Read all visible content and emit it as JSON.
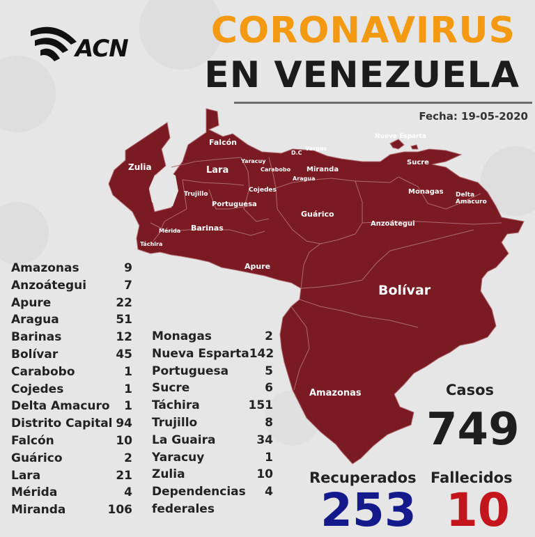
{
  "brand": {
    "logo_text": "ACN"
  },
  "title": {
    "line1": "CORONAVIRUS",
    "line2": "EN VENEZUELA"
  },
  "date_text": "Fecha: 19-05-2020",
  "colors": {
    "map_fill": "#7a1a22",
    "title_orange": "#f39a12",
    "recovered_blue": "#141a8c",
    "deaths_red": "#c4151c",
    "background": "#e6e6e6"
  },
  "map_labels": {
    "falcon": "Falcón",
    "zulia": "Zulia",
    "lara": "Lara",
    "yaracuy": "Yaracuy",
    "carabobo": "Carabobo",
    "dc": "D.C",
    "vargas": "Vargas",
    "nueva_esparta": "Nueva Esparta",
    "miranda": "Miranda",
    "aragua": "Aragua",
    "sucre": "Sucre",
    "monagas": "Monagas",
    "delta_amacuro_1": "Delta",
    "delta_amacuro_2": "Amacuro",
    "trujillo": "Trujillo",
    "cojedes": "Cojedes",
    "portuguesa": "Portuguesa",
    "guarico": "Guárico",
    "anzoategui": "Anzoátegui",
    "merida": "Mérida",
    "barinas": "Barinas",
    "tachira": "Táchira",
    "apure": "Apure",
    "bolivar": "Bolívar",
    "amazonas": "Amazonas"
  },
  "states_left": [
    {
      "name": "Amazonas",
      "count": "9"
    },
    {
      "name": "Anzoátegui",
      "count": "7"
    },
    {
      "name": "Apure",
      "count": "22"
    },
    {
      "name": "Aragua",
      "count": "51"
    },
    {
      "name": "Barinas",
      "count": "12"
    },
    {
      "name": "Bolívar",
      "count": "45"
    },
    {
      "name": "Carabobo",
      "count": "1"
    },
    {
      "name": "Cojedes",
      "count": "1"
    },
    {
      "name": "Delta Amacuro",
      "count": "1"
    },
    {
      "name": "Distrito Capital",
      "count": "94"
    },
    {
      "name": "Falcón",
      "count": "10"
    },
    {
      "name": "Guárico",
      "count": "2"
    },
    {
      "name": "Lara",
      "count": "21"
    },
    {
      "name": "Mérida",
      "count": "4"
    },
    {
      "name": "Miranda",
      "count": "106"
    }
  ],
  "states_right": [
    {
      "name": "Monagas",
      "count": "2"
    },
    {
      "name": "Nueva Esparta",
      "count": "142"
    },
    {
      "name": "Portuguesa",
      "count": "5"
    },
    {
      "name": "Sucre",
      "count": "6"
    },
    {
      "name": "Táchira",
      "count": "151"
    },
    {
      "name": "Trujillo",
      "count": "8"
    },
    {
      "name": "La Guaira",
      "count": "34"
    },
    {
      "name": "Yaracuy",
      "count": "1"
    },
    {
      "name": "Zulia",
      "count": "10"
    },
    {
      "name": "Dependencias",
      "count": "4"
    },
    {
      "name": "federales",
      "count": ""
    }
  ],
  "stats": {
    "casos_label": "Casos",
    "casos": "749",
    "recuperados_label": "Recuperados",
    "recuperados": "253",
    "fallecidos_label": "Fallecidos",
    "fallecidos": "10"
  }
}
